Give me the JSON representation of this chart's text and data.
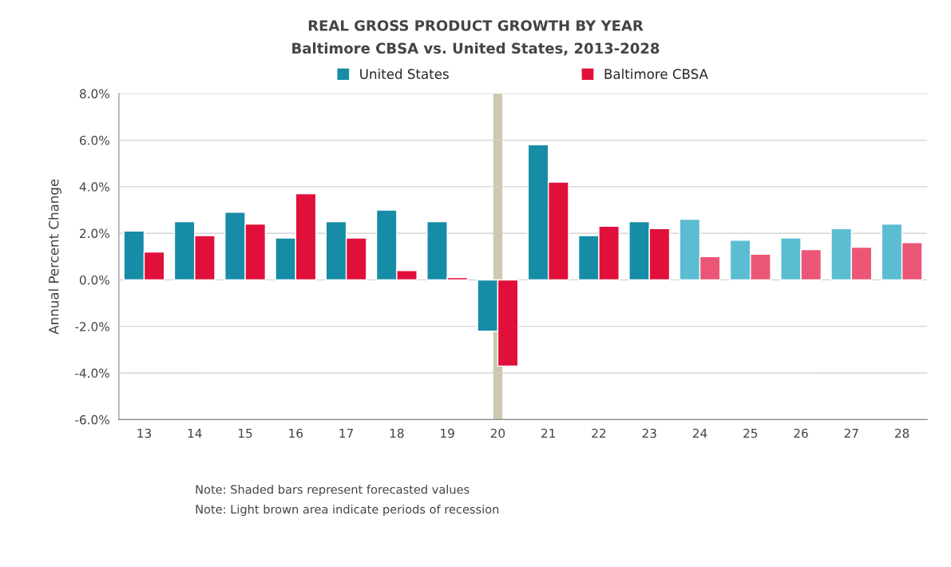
{
  "chart_data": {
    "type": "bar",
    "title": "REAL GROSS PRODUCT GROWTH BY YEAR",
    "subtitle": "Baltimore CBSA vs. United States, 2013-2028",
    "ylabel": "Annual Percent Change",
    "categories": [
      "13",
      "14",
      "15",
      "16",
      "17",
      "18",
      "19",
      "20",
      "21",
      "22",
      "23",
      "24",
      "25",
      "26",
      "27",
      "28"
    ],
    "series": [
      {
        "name": "United States",
        "color": "#178ca6",
        "colors": [
          "#178ca6",
          "#178ca6",
          "#178ca6",
          "#178ca6",
          "#178ca6",
          "#178ca6",
          "#178ca6",
          "#178ca6",
          "#178ca6",
          "#178ca6",
          "#178ca6",
          "#5bbdd2",
          "#5bbdd2",
          "#5bbdd2",
          "#5bbdd2",
          "#5bbdd2"
        ],
        "values": [
          2.1,
          2.5,
          2.9,
          1.8,
          2.5,
          3.0,
          2.5,
          -2.2,
          5.8,
          1.9,
          2.5,
          2.6,
          1.7,
          1.8,
          2.2,
          2.4
        ]
      },
      {
        "name": "Baltimore CBSA",
        "color": "#e0103a",
        "colors": [
          "#e0103a",
          "#e0103a",
          "#e0103a",
          "#e0103a",
          "#e0103a",
          "#e0103a",
          "#e0103a",
          "#e0103a",
          "#e0103a",
          "#e0103a",
          "#e0103a",
          "#ec5676",
          "#ec5676",
          "#ec5676",
          "#ec5676",
          "#ec5676"
        ],
        "values": [
          1.2,
          1.9,
          2.4,
          3.7,
          1.8,
          0.4,
          0.1,
          -3.7,
          4.2,
          2.3,
          2.2,
          1.0,
          1.1,
          1.3,
          1.4,
          1.6
        ]
      }
    ],
    "ylim": [
      -6,
      8
    ],
    "yticks": [
      {
        "value": -6,
        "label": "-6.0%"
      },
      {
        "value": -4,
        "label": "-4.0%"
      },
      {
        "value": -2,
        "label": "-2.0%"
      },
      {
        "value": 0,
        "label": "0.0%"
      },
      {
        "value": 2,
        "label": "2.0%"
      },
      {
        "value": 4,
        "label": "4.0%"
      },
      {
        "value": 6,
        "label": "6.0%"
      },
      {
        "value": 8,
        "label": "8.0%"
      }
    ],
    "bands": [
      {
        "axis": "x",
        "from": "20",
        "to": "20",
        "color": "#cdc9b0"
      }
    ],
    "grid": "y",
    "legend": "top",
    "annotations": [
      "Note: Shaded bars represent forecasted values",
      "Note: Light brown area indicate periods of recession"
    ]
  }
}
